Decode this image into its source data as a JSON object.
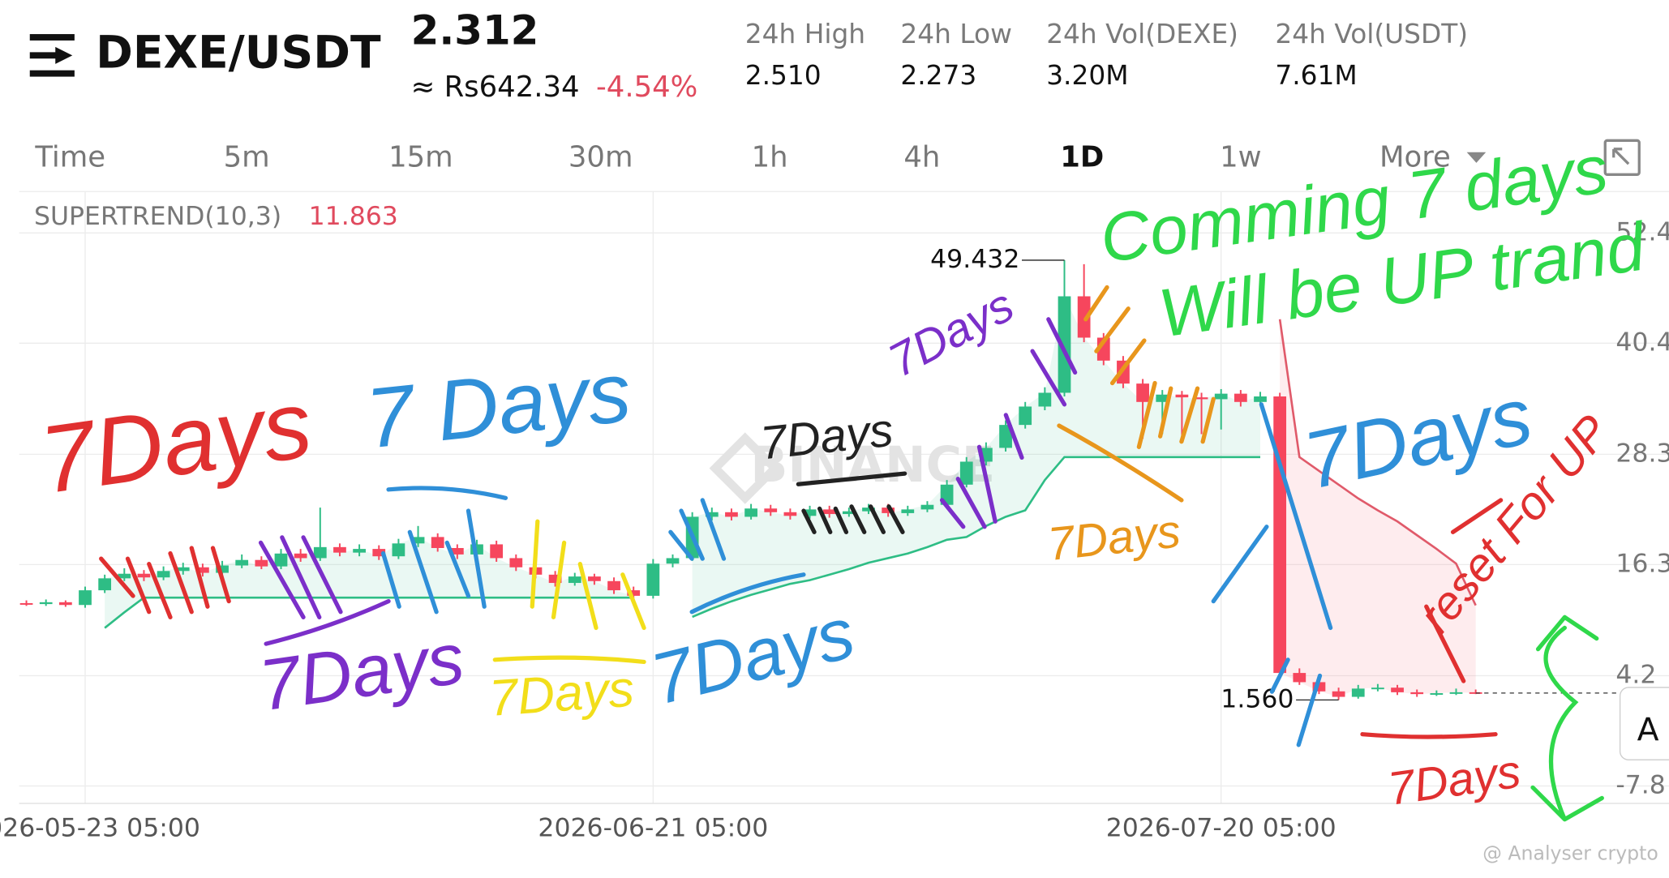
{
  "header": {
    "pair": "DEXE/USDT",
    "price": "2.312",
    "fiat": "≈ Rs642.34",
    "change": "-4.54%",
    "stats": [
      {
        "label": "24h High",
        "value": "2.510"
      },
      {
        "label": "24h Low",
        "value": "2.273"
      },
      {
        "label": "24h Vol(DEXE)",
        "value": "3.20M"
      },
      {
        "label": "24h Vol(USDT)",
        "value": "7.61M"
      }
    ]
  },
  "tabs": [
    "Time",
    "5m",
    "15m",
    "30m",
    "1h",
    "4h",
    "1D",
    "1w",
    "More"
  ],
  "active_tab": "1D",
  "chart": {
    "type": "candlestick",
    "indicator": "SUPERTREND(10,3)",
    "watermark": "BINANCE",
    "credit": "@ Analyser crypto",
    "button": "A",
    "up_color": "#2ebd85",
    "down_color": "#f6465d",
    "ylim": [
      -9.7,
      56.9
    ],
    "yticks": [
      52.4,
      40.4,
      28.3,
      16.3,
      4.2,
      -7.8
    ],
    "xticks": [
      "2026-05-23 05:00",
      "2026-06-21 05:00",
      "2026-07-20 05:00"
    ],
    "markers": [
      {
        "value": 49.432,
        "label": "49.432"
      },
      {
        "value": 1.56,
        "label": "1.560"
      }
    ],
    "last_price": 2.312,
    "candles": [
      [
        12.1,
        12.4,
        11.8,
        12.0
      ],
      [
        12.0,
        12.5,
        11.8,
        12.2
      ],
      [
        12.2,
        12.4,
        11.7,
        11.9
      ],
      [
        11.9,
        13.9,
        11.6,
        13.5
      ],
      [
        13.5,
        15.2,
        13.2,
        14.8
      ],
      [
        14.8,
        15.9,
        14.5,
        15.3
      ],
      [
        15.3,
        15.7,
        14.5,
        14.9
      ],
      [
        14.9,
        16.1,
        14.6,
        15.6
      ],
      [
        15.6,
        16.5,
        15.2,
        16.0
      ],
      [
        16.0,
        16.4,
        15.0,
        15.4
      ],
      [
        15.4,
        16.7,
        15.1,
        16.2
      ],
      [
        16.2,
        17.4,
        15.9,
        16.8
      ],
      [
        16.8,
        17.2,
        15.8,
        16.1
      ],
      [
        16.1,
        18.0,
        15.8,
        17.5
      ],
      [
        17.5,
        18.0,
        16.6,
        17.0
      ],
      [
        17.0,
        22.5,
        16.7,
        18.2
      ],
      [
        18.2,
        18.6,
        17.2,
        17.6
      ],
      [
        17.6,
        18.5,
        17.2,
        18.0
      ],
      [
        18.0,
        18.4,
        16.8,
        17.2
      ],
      [
        17.2,
        19.1,
        16.9,
        18.6
      ],
      [
        18.6,
        20.5,
        18.2,
        19.3
      ],
      [
        19.3,
        19.7,
        17.7,
        18.1
      ],
      [
        18.1,
        18.5,
        16.9,
        17.4
      ],
      [
        17.4,
        19.0,
        17.0,
        18.5
      ],
      [
        18.5,
        18.9,
        16.6,
        17.0
      ],
      [
        17.0,
        17.4,
        15.6,
        16.0
      ],
      [
        16.0,
        16.4,
        14.8,
        15.2
      ],
      [
        15.2,
        15.6,
        13.9,
        14.3
      ],
      [
        14.3,
        15.4,
        14.0,
        15.0
      ],
      [
        15.0,
        15.3,
        14.1,
        14.5
      ],
      [
        14.5,
        14.9,
        13.1,
        13.5
      ],
      [
        13.5,
        13.9,
        12.5,
        12.9
      ],
      [
        12.9,
        16.9,
        12.6,
        16.4
      ],
      [
        16.4,
        17.4,
        16.0,
        17.0
      ],
      [
        17.0,
        22.0,
        16.7,
        21.5
      ],
      [
        21.5,
        22.5,
        21.1,
        22.0
      ],
      [
        22.0,
        22.4,
        21.1,
        21.5
      ],
      [
        21.5,
        22.9,
        21.2,
        22.4
      ],
      [
        22.4,
        22.8,
        21.6,
        22.0
      ],
      [
        22.0,
        22.4,
        21.2,
        21.6
      ],
      [
        21.6,
        22.7,
        21.3,
        22.3
      ],
      [
        22.3,
        22.7,
        21.4,
        21.8
      ],
      [
        21.8,
        22.5,
        21.5,
        22.1
      ],
      [
        22.1,
        22.9,
        21.8,
        22.5
      ],
      [
        22.5,
        22.9,
        21.5,
        21.9
      ],
      [
        21.9,
        22.7,
        21.6,
        22.3
      ],
      [
        22.3,
        23.2,
        22.0,
        22.8
      ],
      [
        22.8,
        25.5,
        22.5,
        25.0
      ],
      [
        25.0,
        28.0,
        24.7,
        27.5
      ],
      [
        27.5,
        29.6,
        27.1,
        29.0
      ],
      [
        29.0,
        32.0,
        28.6,
        31.5
      ],
      [
        31.5,
        34.0,
        31.1,
        33.5
      ],
      [
        33.5,
        35.6,
        33.1,
        35.0
      ],
      [
        35.0,
        49.432,
        34.6,
        45.5
      ],
      [
        45.5,
        49.0,
        40.5,
        41.0
      ],
      [
        41.0,
        41.5,
        38.0,
        38.5
      ],
      [
        38.5,
        39.0,
        35.5,
        36.0
      ],
      [
        36.0,
        36.5,
        30.0,
        34.0
      ],
      [
        34.0,
        35.3,
        30.5,
        34.8
      ],
      [
        34.8,
        35.2,
        30.0,
        34.5
      ],
      [
        34.5,
        35.0,
        30.5,
        34.3
      ],
      [
        34.3,
        35.4,
        31.0,
        34.9
      ],
      [
        34.9,
        35.3,
        33.5,
        34.0
      ],
      [
        34.0,
        35.1,
        33.6,
        34.6
      ],
      [
        34.6,
        35.0,
        4.2,
        4.5
      ],
      [
        4.5,
        5.0,
        3.2,
        3.5
      ],
      [
        3.5,
        3.9,
        2.2,
        2.5
      ],
      [
        2.5,
        2.9,
        1.56,
        1.9
      ],
      [
        1.9,
        3.2,
        1.7,
        2.8
      ],
      [
        2.8,
        3.3,
        2.5,
        2.9
      ],
      [
        2.9,
        3.2,
        2.1,
        2.4
      ],
      [
        2.4,
        2.7,
        1.9,
        2.2
      ],
      [
        2.2,
        2.6,
        2.0,
        2.3
      ],
      [
        2.3,
        2.8,
        2.1,
        2.4
      ],
      [
        2.4,
        2.7,
        2.2,
        2.312
      ]
    ],
    "supertrend": [
      {
        "name": "up",
        "color": "#2ebd85",
        "values": [
          null,
          null,
          null,
          null,
          9.4,
          11.1,
          12.7,
          12.7,
          12.7,
          12.7,
          12.7,
          12.7,
          12.7,
          12.7,
          12.7,
          12.7,
          12.7,
          12.7,
          12.7,
          12.7,
          12.7,
          12.7,
          12.7,
          12.7,
          12.7,
          12.7,
          12.7,
          12.7,
          12.7,
          12.7,
          12.7,
          12.7,
          null,
          null,
          10.6,
          11.5,
          12.3,
          13.0,
          13.6,
          14.2,
          14.6,
          15.2,
          15.8,
          16.5,
          17.0,
          17.5,
          18.2,
          19.0,
          19.3,
          20.5,
          21.5,
          22.2,
          25.5,
          28.0,
          28.0,
          28.0,
          28.0,
          28.0,
          28.0,
          28.0,
          28.0,
          28.0,
          28.0,
          28.0,
          null,
          null,
          null,
          null,
          null,
          null,
          null,
          null,
          null,
          null,
          null
        ]
      },
      {
        "name": "down",
        "color": "#e05a6a",
        "values": [
          null,
          null,
          null,
          null,
          null,
          null,
          null,
          null,
          null,
          null,
          null,
          null,
          null,
          null,
          null,
          null,
          null,
          null,
          null,
          null,
          null,
          null,
          null,
          null,
          null,
          null,
          null,
          null,
          null,
          null,
          null,
          null,
          null,
          null,
          null,
          null,
          null,
          null,
          null,
          null,
          null,
          null,
          null,
          null,
          null,
          null,
          null,
          null,
          null,
          null,
          null,
          null,
          null,
          null,
          null,
          null,
          null,
          null,
          null,
          null,
          null,
          null,
          null,
          null,
          43.0,
          28.0,
          26.5,
          25.0,
          23.5,
          22.2,
          21.0,
          19.5,
          18.0,
          16.4,
          11.863
        ]
      }
    ],
    "annotations": [
      {
        "text": "7Days",
        "color": "#e03030"
      },
      {
        "text": "7 Days",
        "color": "#2f8fd8"
      },
      {
        "text": "7Days",
        "color": "#7b2fc9"
      },
      {
        "text": "7Days",
        "color": "#f2de1a"
      },
      {
        "text": "7Days",
        "color": "#2f8fd8"
      },
      {
        "text": "7Days",
        "color": "#222222"
      },
      {
        "text": "7Days",
        "color": "#7b2fc9"
      },
      {
        "text": "7Days",
        "color": "#e8961c"
      },
      {
        "text": "Comming 7 days",
        "color": "#2fd84a"
      },
      {
        "text": "Will be UP trand",
        "color": "#2fd84a"
      },
      {
        "text": "7Days",
        "color": "#2f8fd8"
      },
      {
        "text": "reset For UP",
        "color": "#e03030"
      },
      {
        "text": "7Days",
        "color": "#e03030"
      }
    ]
  }
}
